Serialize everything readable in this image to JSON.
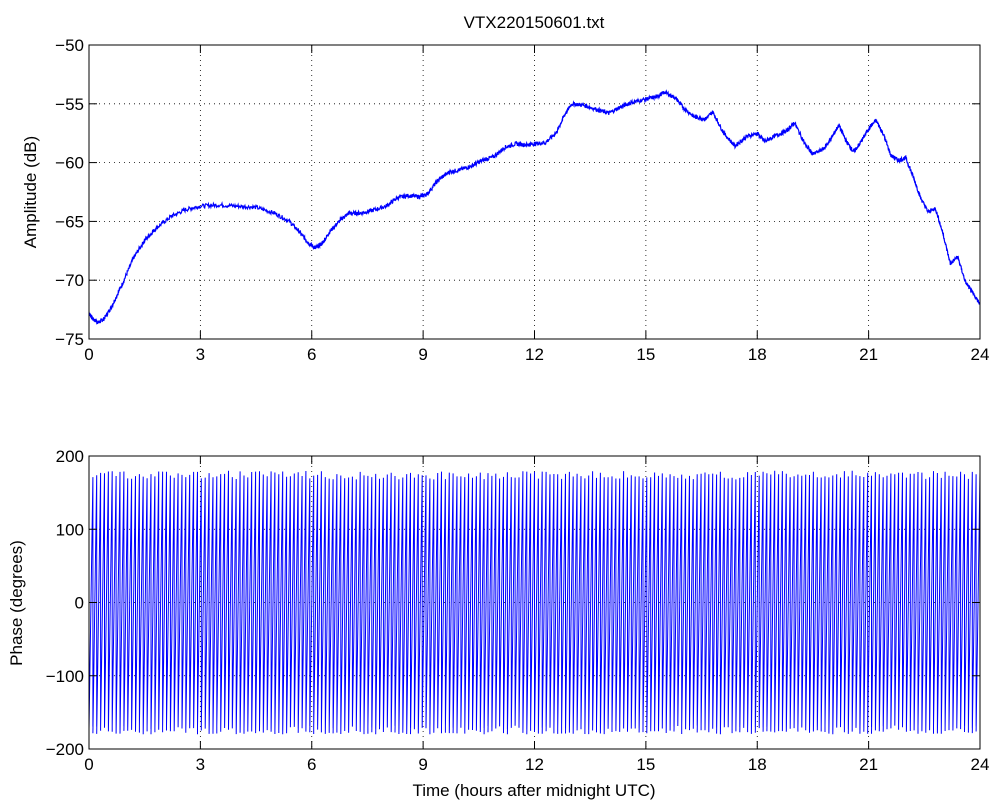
{
  "figure": {
    "title": "VTX220150601.txt"
  },
  "chart_data": [
    {
      "type": "line",
      "title": "VTX220150601.txt",
      "xlabel": "",
      "ylabel": "Amplitude (dB)",
      "xlim": [
        0,
        24
      ],
      "ylim": [
        -75,
        -50
      ],
      "xticks": [
        0,
        3,
        6,
        9,
        12,
        15,
        18,
        21,
        24
      ],
      "yticks": [
        -75,
        -70,
        -65,
        -60,
        -55,
        -50
      ],
      "xtick_labels": [
        "0",
        "3",
        "6",
        "9",
        "12",
        "15",
        "18",
        "21",
        "24"
      ],
      "ytick_labels": [
        "−75",
        "−70",
        "−65",
        "−60",
        "−55",
        "−50"
      ],
      "grid": true,
      "grid_style": "dotted",
      "line_color": "#0000ff",
      "series": [
        {
          "x": [
            0,
            0.1,
            0.25,
            0.4,
            0.6,
            0.9,
            1.2,
            1.5,
            1.8,
            2.2,
            2.6,
            3.0,
            3.5,
            4.0,
            4.5,
            5.0,
            5.4,
            5.7,
            5.9,
            6.1,
            6.3,
            6.5,
            6.8,
            7.0,
            7.3,
            7.6,
            8.0,
            8.3,
            8.6,
            8.9,
            9.1,
            9.4,
            9.7,
            10.0,
            10.3,
            10.6,
            10.9,
            11.2,
            11.5,
            11.8,
            12.0,
            12.3,
            12.6,
            12.8,
            13.0,
            13.3,
            13.7,
            14.0,
            14.3,
            14.6,
            15.0,
            15.3,
            15.5,
            15.8,
            16.0,
            16.3,
            16.6,
            16.8,
            17.1,
            17.4,
            17.7,
            18.0,
            18.2,
            18.5,
            18.8,
            19.0,
            19.3,
            19.5,
            19.8,
            20.0,
            20.2,
            20.4,
            20.6,
            20.8,
            21.0,
            21.2,
            21.4,
            21.6,
            21.8,
            22.0,
            22.2,
            22.4,
            22.6,
            22.8,
            23.0,
            23.2,
            23.4,
            23.6,
            23.8,
            24.0
          ],
          "y": [
            -72.8,
            -73.3,
            -73.6,
            -73.3,
            -72.3,
            -70.3,
            -68.1,
            -66.6,
            -65.6,
            -64.6,
            -64.0,
            -63.7,
            -63.6,
            -63.7,
            -63.8,
            -64.3,
            -65.0,
            -66.0,
            -66.8,
            -67.3,
            -66.8,
            -65.8,
            -64.8,
            -64.3,
            -64.3,
            -64.1,
            -63.7,
            -63.0,
            -62.8,
            -62.9,
            -62.7,
            -61.5,
            -60.8,
            -60.6,
            -60.3,
            -59.8,
            -59.5,
            -58.7,
            -58.4,
            -58.5,
            -58.4,
            -58.3,
            -57.4,
            -56.0,
            -55.0,
            -55.1,
            -55.5,
            -55.8,
            -55.3,
            -54.9,
            -54.6,
            -54.4,
            -54.0,
            -54.5,
            -55.3,
            -56.1,
            -56.3,
            -55.7,
            -57.5,
            -58.6,
            -57.8,
            -57.5,
            -58.2,
            -57.7,
            -57.3,
            -56.6,
            -58.5,
            -59.3,
            -58.8,
            -57.9,
            -56.8,
            -58.2,
            -59.1,
            -58.2,
            -57.1,
            -56.4,
            -57.6,
            -59.4,
            -59.8,
            -59.6,
            -61.2,
            -63.0,
            -64.2,
            -63.9,
            -66.0,
            -68.6,
            -68.0,
            -70.1,
            -71.1,
            -72.0
          ]
        }
      ]
    },
    {
      "type": "line",
      "title": "",
      "xlabel": "Time (hours after midnight UTC)",
      "ylabel": "Phase (degrees)",
      "xlim": [
        0,
        24
      ],
      "ylim": [
        -200,
        200
      ],
      "xticks": [
        0,
        3,
        6,
        9,
        12,
        15,
        18,
        21,
        24
      ],
      "yticks": [
        -200,
        -100,
        0,
        100,
        200
      ],
      "xtick_labels": [
        "0",
        "3",
        "6",
        "9",
        "12",
        "15",
        "18",
        "21",
        "24"
      ],
      "ytick_labels": [
        "−200",
        "−100",
        "0",
        "100",
        "200"
      ],
      "grid": true,
      "grid_style": "dotted",
      "line_color": "#0000ff",
      "series": [
        {
          "pattern": "sawtooth",
          "y_min": -180,
          "y_max": 180,
          "x_start": 0,
          "x_end": 24,
          "approx_wraps": 230
        }
      ]
    }
  ]
}
